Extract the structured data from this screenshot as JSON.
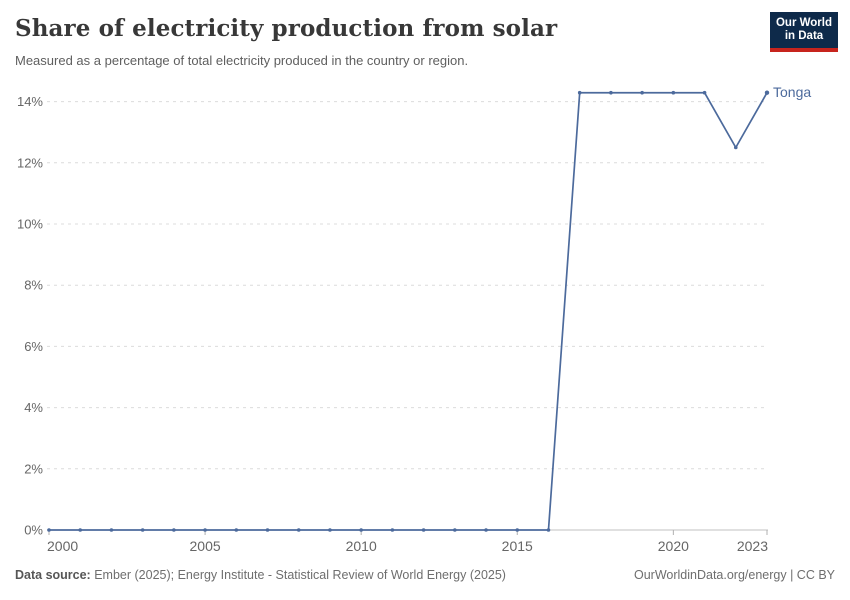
{
  "header": {
    "title": "Share of electricity production from solar",
    "subtitle": "Measured as a percentage of total electricity produced in the country or region.",
    "logo": {
      "line1": "Our World",
      "line2": "in Data"
    }
  },
  "chart_data": {
    "type": "line",
    "title": "Share of electricity production from solar",
    "xlabel": "",
    "ylabel": "",
    "x": [
      2000,
      2001,
      2002,
      2003,
      2004,
      2005,
      2006,
      2007,
      2008,
      2009,
      2010,
      2011,
      2012,
      2013,
      2014,
      2015,
      2016,
      2017,
      2018,
      2019,
      2020,
      2021,
      2022,
      2023
    ],
    "series": [
      {
        "name": "Tonga",
        "color": "#4c6a9c",
        "values": [
          0,
          0,
          0,
          0,
          0,
          0,
          0,
          0,
          0,
          0,
          0,
          0,
          0,
          0,
          0,
          0,
          0,
          14.29,
          14.29,
          14.29,
          14.29,
          14.29,
          12.5,
          14.29
        ]
      }
    ],
    "x_ticks": [
      2000,
      2005,
      2010,
      2015,
      2020,
      2023
    ],
    "y_ticks": [
      0,
      2,
      4,
      6,
      8,
      10,
      12,
      14
    ],
    "y_tick_suffix": "%",
    "xlim": [
      2000,
      2023
    ],
    "ylim": [
      0,
      14.6
    ],
    "grid": "horizontal-dashed",
    "legend_position": "end-of-line-label",
    "colors": {
      "gridline": "#dcdcdc",
      "axis_line": "#c2c2c2",
      "tick": "#b0b0b0",
      "tick_label": "#666666"
    }
  },
  "footer": {
    "datasource_label": "Data source:",
    "datasource_text": " Ember (2025); Energy Institute - Statistical Review of World Energy (2025)",
    "right_text": "OurWorldinData.org/energy | CC BY"
  }
}
